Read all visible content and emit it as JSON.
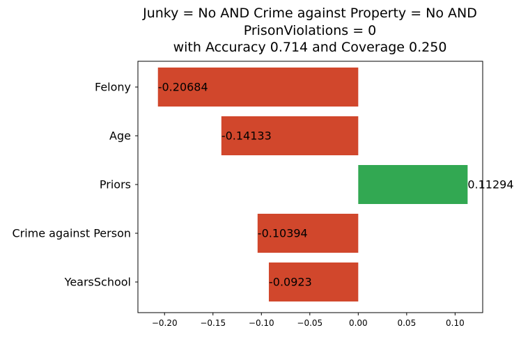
{
  "chart_data": {
    "type": "bar",
    "orientation": "horizontal",
    "title_lines": [
      "Junky = No AND Crime against Property = No AND",
      "PrisonViolations = 0",
      "with Accuracy 0.714 and Coverage 0.250"
    ],
    "categories": [
      "Felony",
      "Age",
      "Priors",
      "Crime against Person",
      "YearsSchool"
    ],
    "values": [
      -0.20684,
      -0.14133,
      0.11294,
      -0.10394,
      -0.0923
    ],
    "value_labels": [
      "-0.20684",
      "-0.14133",
      "0.11294",
      "-0.10394",
      "-0.0923"
    ],
    "xticks": [
      -0.2,
      -0.15,
      -0.1,
      -0.05,
      0.0,
      0.05,
      0.1
    ],
    "xtick_labels": [
      "−0.20",
      "−0.15",
      "−0.10",
      "−0.05",
      "0.00",
      "0.05",
      "0.10"
    ],
    "xlim": [
      -0.2275,
      0.1285
    ],
    "xlabel": "",
    "ylabel": "",
    "grid": false,
    "colors": {
      "negative": "#d1472c",
      "positive": "#32a852"
    }
  }
}
